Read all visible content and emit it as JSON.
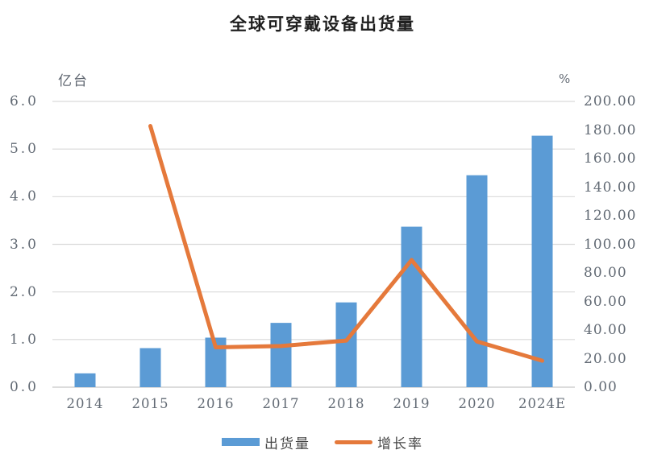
{
  "title": "全球可穿戴设备出货量",
  "chart_data": {
    "type": "bar",
    "subtype": "bar-line-combo",
    "title": "全球可穿戴设备出货量",
    "categories": [
      "2014",
      "2015",
      "2016",
      "2017",
      "2018",
      "2019",
      "2020",
      "2024E"
    ],
    "series": [
      {
        "name": "出货量",
        "type": "bar",
        "axis": "left",
        "unit": "亿台",
        "color": "#5B9BD5",
        "values": [
          0.29,
          0.82,
          1.04,
          1.35,
          1.78,
          3.37,
          4.45,
          5.28
        ]
      },
      {
        "name": "增长率",
        "type": "line",
        "axis": "right",
        "unit": "%",
        "color": "#E5793B",
        "values": [
          null,
          182.8,
          27.9,
          28.8,
          32.6,
          89.0,
          32.0,
          18.5
        ]
      }
    ],
    "left_axis": {
      "unit": "亿台",
      "min": 0,
      "max": 6,
      "ticks": [
        "0.0",
        "1.0",
        "2.0",
        "3.0",
        "4.0",
        "5.0",
        "6.0"
      ]
    },
    "right_axis": {
      "unit": "%",
      "min": 0,
      "max": 200,
      "ticks": [
        "0.00",
        "20.00",
        "40.00",
        "60.00",
        "80.00",
        "100.00",
        "120.00",
        "140.00",
        "160.00",
        "180.00",
        "200.00"
      ]
    },
    "grid": true,
    "grid_color": "#D9D9D9",
    "axis_line_color": "#C6C6C6",
    "legend_position": "bottom",
    "xlabel": "",
    "ylabel": "亿台"
  }
}
